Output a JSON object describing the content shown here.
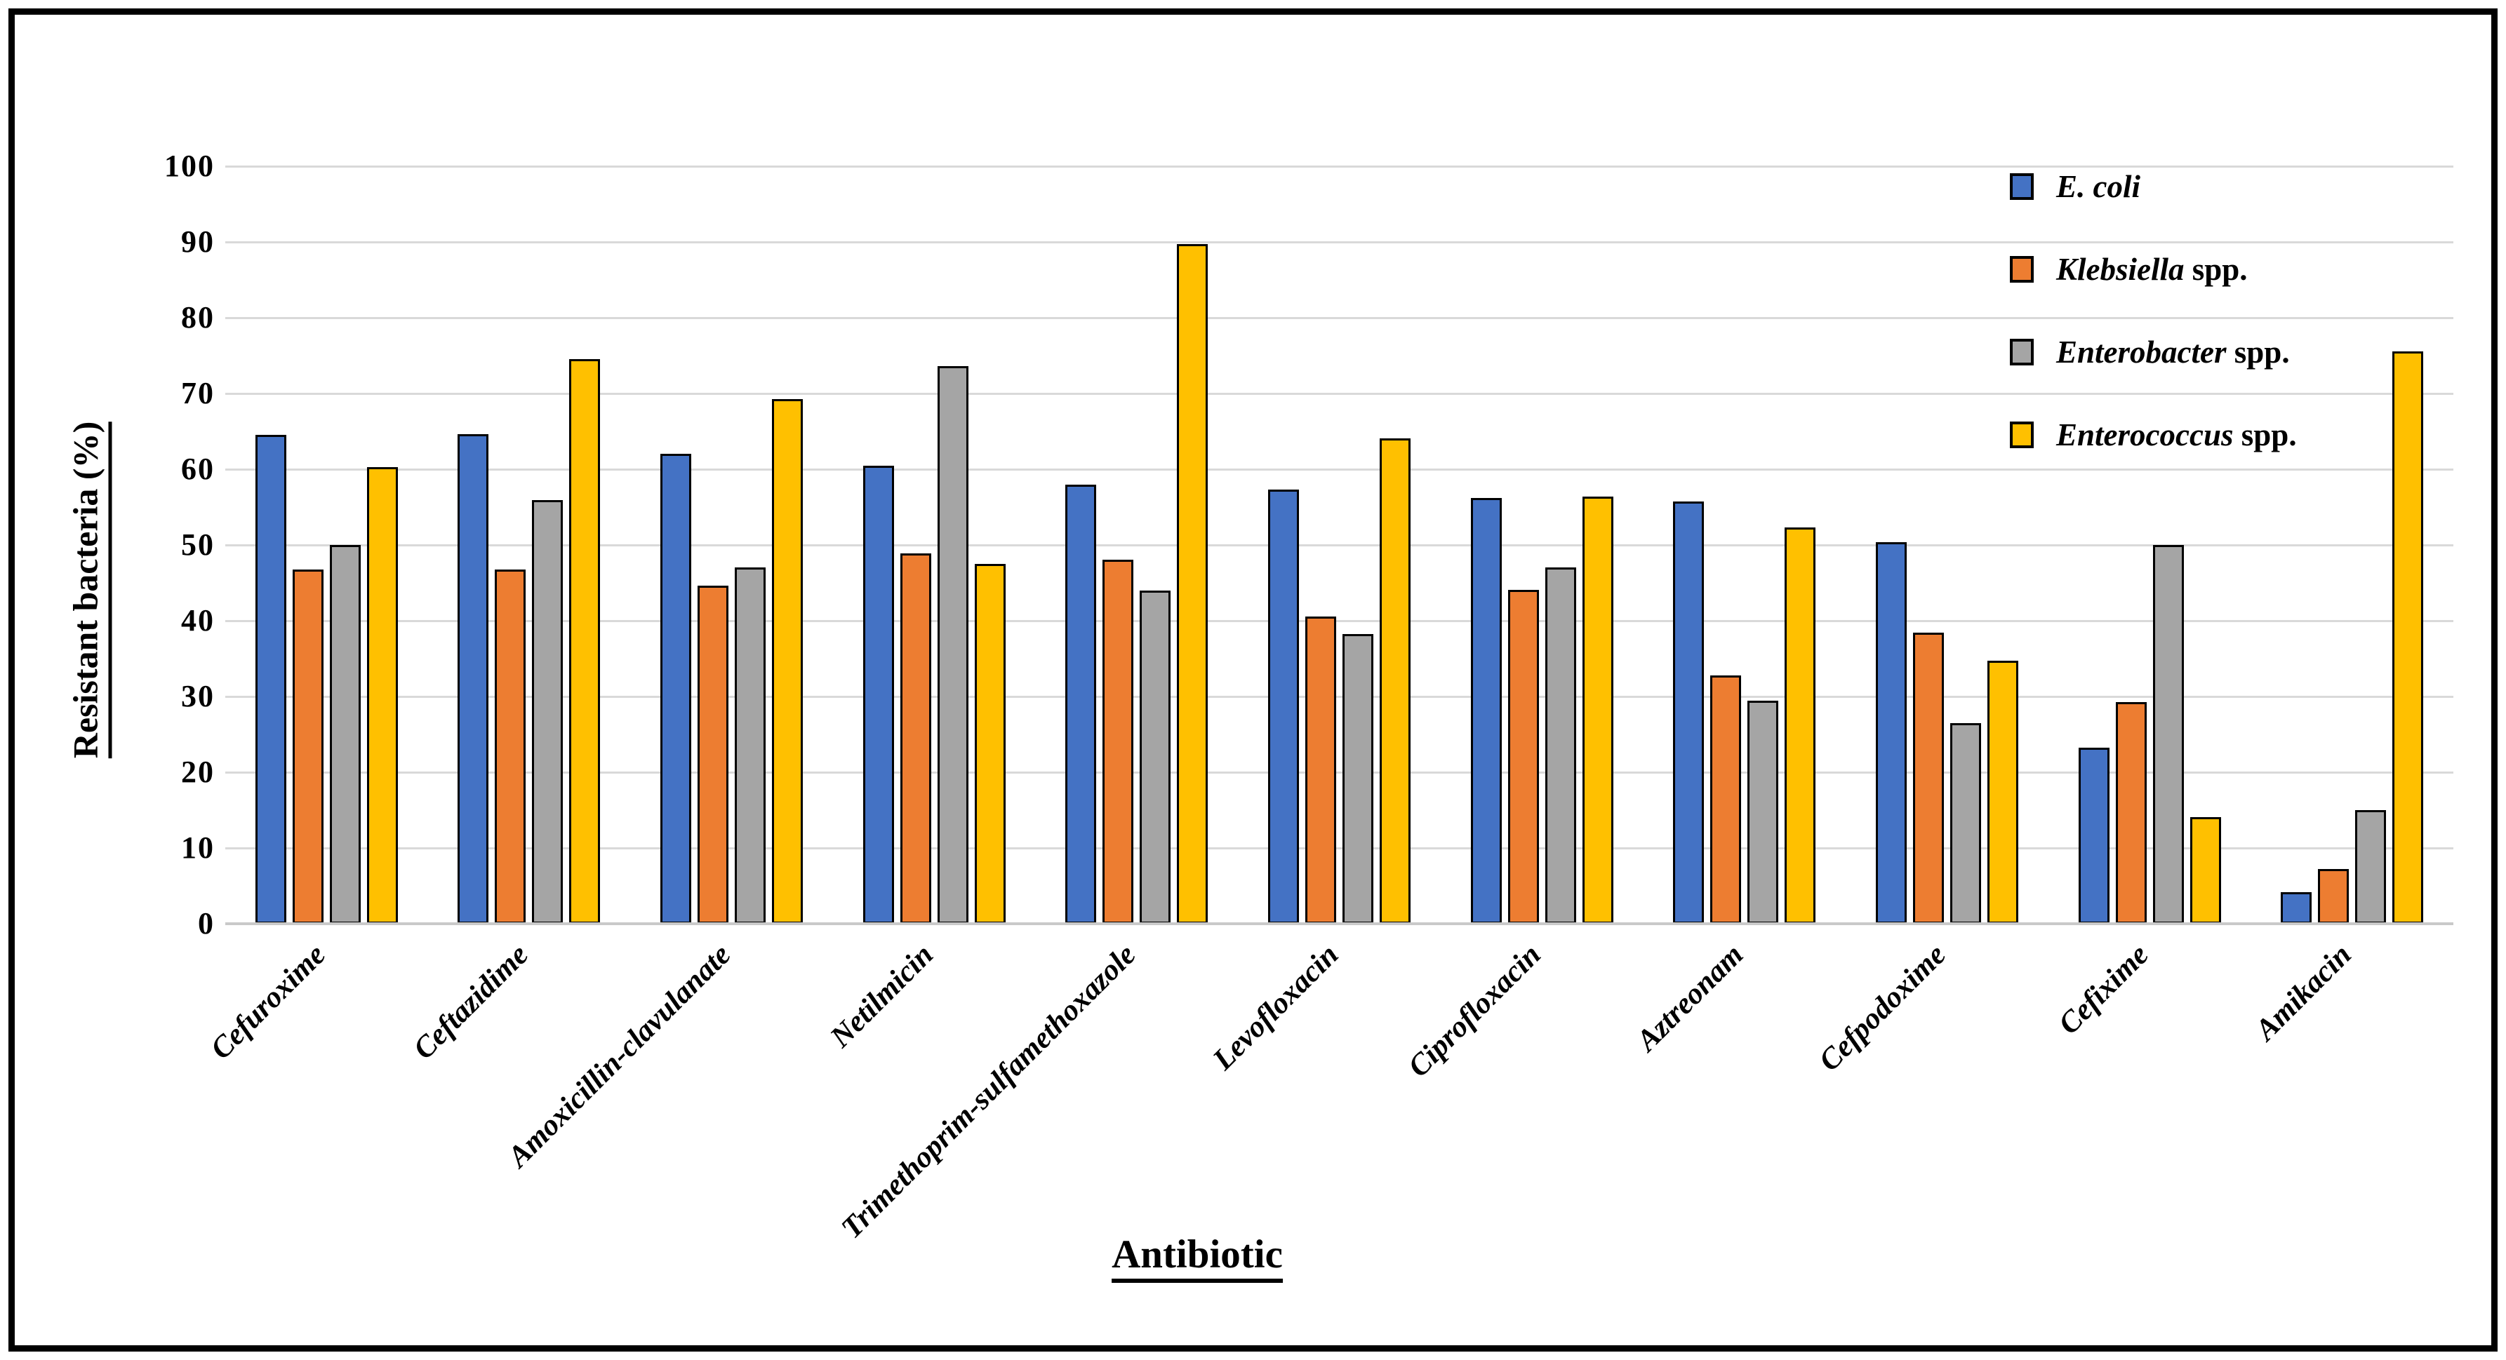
{
  "chart_data": {
    "type": "bar",
    "title": "",
    "xlabel": "Antibiotic",
    "ylabel": "Resistant bacteria (%)",
    "ylim": [
      0,
      100
    ],
    "ytick_step": 10,
    "grid": "horizontal-gridlines",
    "legend_position": "top-right-inside",
    "categories": [
      "Cefuroxime",
      "Ceftazidime",
      "Amoxicillin-clavulanate",
      "Netilmicin",
      "Trimethoprim-sulfamethoxazole",
      "Levofloxacin",
      "Ciprofloxacin",
      "Aztreonam",
      "Cefpodoxime",
      "Cefixime",
      "Amikacin"
    ],
    "series": [
      {
        "name": "E. coli",
        "label_italic": "E. coli",
        "label_rest": "",
        "color": "#4472C4",
        "values": [
          64.5,
          64.6,
          62.0,
          60.5,
          58.0,
          57.3,
          56.2,
          55.7,
          50.4,
          23.2,
          4.2
        ]
      },
      {
        "name": "Klebsiella spp.",
        "label_italic": "Klebsiella",
        "label_rest": " spp.",
        "color": "#ED7D31",
        "values": [
          46.8,
          46.8,
          44.6,
          48.9,
          48.1,
          40.6,
          44.1,
          32.8,
          38.4,
          29.3,
          7.2
        ]
      },
      {
        "name": "Enterobacter spp.",
        "label_italic": "Enterobacter",
        "label_rest": " spp.",
        "color": "#A5A5A5",
        "values": [
          50.0,
          55.9,
          47.0,
          73.6,
          44.0,
          38.2,
          47.0,
          29.4,
          26.5,
          50.0,
          15.0
        ]
      },
      {
        "name": "Enterococcus spp.",
        "label_italic": "Enterococcus",
        "label_rest": " spp.",
        "color": "#FFC000",
        "values": [
          60.3,
          74.5,
          69.3,
          47.5,
          89.7,
          64.1,
          56.4,
          52.3,
          34.7,
          14.1,
          75.6
        ]
      }
    ],
    "styles": {
      "bar_border_color": "#000000",
      "gridline_color": "#D9D9D9",
      "axis_line_color": "#C9C9C9"
    }
  }
}
